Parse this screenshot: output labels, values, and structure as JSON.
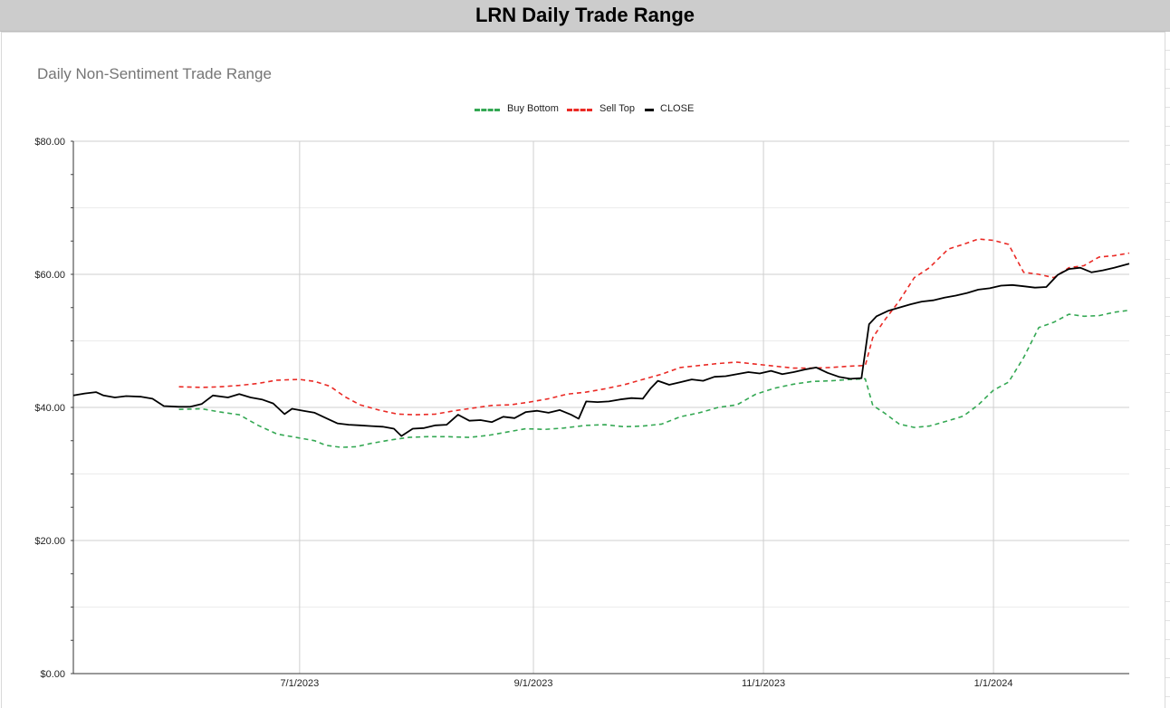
{
  "banner": {
    "title": "LRN Daily Trade Range"
  },
  "chart_data": {
    "type": "line",
    "title": "Daily Non-Sentiment Trade Range",
    "xlabel": "",
    "ylabel": "",
    "ylim": [
      0,
      80
    ],
    "y_ticks": [
      "$0.00",
      "$20.00",
      "$40.00",
      "$60.00",
      "$80.00"
    ],
    "y_tick_values": [
      0,
      20,
      40,
      60,
      80
    ],
    "x_ticks": [
      "7/1/2023",
      "9/1/2023",
      "11/1/2023",
      "1/1/2024"
    ],
    "x_tick_dates": [
      "2023-07-01",
      "2023-09-01",
      "2023-11-01",
      "2024-01-01"
    ],
    "x_range": [
      "2023-05-02",
      "2024-02-06"
    ],
    "grid": true,
    "legend_position": "top-center",
    "series": [
      {
        "name": "Buy Bottom",
        "color": "#34a853",
        "style": "dashed",
        "points": [
          [
            "2023-05-30",
            39.7
          ],
          [
            "2023-06-05",
            39.8
          ],
          [
            "2023-06-10",
            39.3
          ],
          [
            "2023-06-15",
            38.9
          ],
          [
            "2023-06-20",
            37.3
          ],
          [
            "2023-06-25",
            36.0
          ],
          [
            "2023-07-01",
            35.4
          ],
          [
            "2023-07-05",
            35.0
          ],
          [
            "2023-07-08",
            34.3
          ],
          [
            "2023-07-12",
            34.0
          ],
          [
            "2023-07-16",
            34.1
          ],
          [
            "2023-07-20",
            34.6
          ],
          [
            "2023-07-25",
            35.1
          ],
          [
            "2023-07-30",
            35.5
          ],
          [
            "2023-08-04",
            35.6
          ],
          [
            "2023-08-09",
            35.6
          ],
          [
            "2023-08-15",
            35.5
          ],
          [
            "2023-08-20",
            35.8
          ],
          [
            "2023-08-25",
            36.3
          ],
          [
            "2023-08-30",
            36.8
          ],
          [
            "2023-09-04",
            36.7
          ],
          [
            "2023-09-09",
            36.9
          ],
          [
            "2023-09-15",
            37.3
          ],
          [
            "2023-09-20",
            37.4
          ],
          [
            "2023-09-25",
            37.1
          ],
          [
            "2023-09-30",
            37.2
          ],
          [
            "2023-10-05",
            37.5
          ],
          [
            "2023-10-10",
            38.6
          ],
          [
            "2023-10-15",
            39.2
          ],
          [
            "2023-10-20",
            40.0
          ],
          [
            "2023-10-25",
            40.4
          ],
          [
            "2023-10-30",
            42.0
          ],
          [
            "2023-11-04",
            42.9
          ],
          [
            "2023-11-09",
            43.5
          ],
          [
            "2023-11-14",
            43.9
          ],
          [
            "2023-11-19",
            44.0
          ],
          [
            "2023-11-24",
            44.2
          ],
          [
            "2023-11-28",
            44.3
          ],
          [
            "2023-11-30",
            40.3
          ],
          [
            "2023-12-03",
            39.2
          ],
          [
            "2023-12-07",
            37.5
          ],
          [
            "2023-12-11",
            37.0
          ],
          [
            "2023-12-15",
            37.2
          ],
          [
            "2023-12-20",
            38.0
          ],
          [
            "2023-12-24",
            38.7
          ],
          [
            "2023-12-28",
            40.4
          ],
          [
            "2024-01-01",
            42.6
          ],
          [
            "2024-01-05",
            43.8
          ],
          [
            "2024-01-09",
            47.5
          ],
          [
            "2024-01-13",
            52.0
          ],
          [
            "2024-01-17",
            52.8
          ],
          [
            "2024-01-21",
            54.0
          ],
          [
            "2024-01-25",
            53.7
          ],
          [
            "2024-01-29",
            53.8
          ],
          [
            "2024-02-02",
            54.3
          ],
          [
            "2024-02-06",
            54.6
          ]
        ]
      },
      {
        "name": "Sell Top",
        "color": "#ea2a25",
        "style": "dashed",
        "points": [
          [
            "2023-05-30",
            43.1
          ],
          [
            "2023-06-05",
            43.0
          ],
          [
            "2023-06-10",
            43.1
          ],
          [
            "2023-06-15",
            43.3
          ],
          [
            "2023-06-20",
            43.6
          ],
          [
            "2023-06-25",
            44.1
          ],
          [
            "2023-07-01",
            44.2
          ],
          [
            "2023-07-05",
            43.9
          ],
          [
            "2023-07-09",
            43.2
          ],
          [
            "2023-07-13",
            41.6
          ],
          [
            "2023-07-17",
            40.4
          ],
          [
            "2023-07-22",
            39.6
          ],
          [
            "2023-07-27",
            39.0
          ],
          [
            "2023-08-01",
            38.9
          ],
          [
            "2023-08-06",
            39.0
          ],
          [
            "2023-08-11",
            39.5
          ],
          [
            "2023-08-16",
            39.9
          ],
          [
            "2023-08-21",
            40.3
          ],
          [
            "2023-08-26",
            40.4
          ],
          [
            "2023-08-31",
            40.8
          ],
          [
            "2023-09-05",
            41.3
          ],
          [
            "2023-09-10",
            42.0
          ],
          [
            "2023-09-15",
            42.3
          ],
          [
            "2023-09-20",
            42.8
          ],
          [
            "2023-09-25",
            43.4
          ],
          [
            "2023-09-30",
            44.2
          ],
          [
            "2023-10-05",
            45.0
          ],
          [
            "2023-10-10",
            46.0
          ],
          [
            "2023-10-15",
            46.3
          ],
          [
            "2023-10-20",
            46.6
          ],
          [
            "2023-10-25",
            46.8
          ],
          [
            "2023-10-30",
            46.5
          ],
          [
            "2023-11-04",
            46.2
          ],
          [
            "2023-11-09",
            45.9
          ],
          [
            "2023-11-14",
            45.9
          ],
          [
            "2023-11-19",
            46.0
          ],
          [
            "2023-11-24",
            46.2
          ],
          [
            "2023-11-28",
            46.3
          ],
          [
            "2023-11-30",
            50.5
          ],
          [
            "2023-12-03",
            53.0
          ],
          [
            "2023-12-07",
            56.0
          ],
          [
            "2023-12-11",
            59.5
          ],
          [
            "2023-12-15",
            61.0
          ],
          [
            "2023-12-20",
            63.8
          ],
          [
            "2023-12-24",
            64.5
          ],
          [
            "2023-12-28",
            65.3
          ],
          [
            "2024-01-01",
            65.1
          ],
          [
            "2024-01-05",
            64.5
          ],
          [
            "2024-01-09",
            60.3
          ],
          [
            "2024-01-13",
            60.0
          ],
          [
            "2024-01-17",
            59.5
          ],
          [
            "2024-01-21",
            61.0
          ],
          [
            "2024-01-25",
            61.3
          ],
          [
            "2024-01-29",
            62.6
          ],
          [
            "2024-02-02",
            62.8
          ],
          [
            "2024-02-06",
            63.2
          ]
        ]
      },
      {
        "name": "CLOSE",
        "color": "#000000",
        "style": "solid",
        "points": [
          [
            "2023-05-02",
            41.8
          ],
          [
            "2023-05-05",
            42.1
          ],
          [
            "2023-05-08",
            42.3
          ],
          [
            "2023-05-10",
            41.8
          ],
          [
            "2023-05-13",
            41.5
          ],
          [
            "2023-05-16",
            41.7
          ],
          [
            "2023-05-20",
            41.6
          ],
          [
            "2023-05-23",
            41.3
          ],
          [
            "2023-05-26",
            40.2
          ],
          [
            "2023-05-30",
            40.1
          ],
          [
            "2023-06-02",
            40.1
          ],
          [
            "2023-06-05",
            40.5
          ],
          [
            "2023-06-08",
            41.8
          ],
          [
            "2023-06-12",
            41.5
          ],
          [
            "2023-06-15",
            42.0
          ],
          [
            "2023-06-18",
            41.5
          ],
          [
            "2023-06-21",
            41.2
          ],
          [
            "2023-06-24",
            40.6
          ],
          [
            "2023-06-27",
            39.0
          ],
          [
            "2023-06-29",
            39.8
          ],
          [
            "2023-07-02",
            39.5
          ],
          [
            "2023-07-05",
            39.2
          ],
          [
            "2023-07-08",
            38.4
          ],
          [
            "2023-07-11",
            37.6
          ],
          [
            "2023-07-14",
            37.4
          ],
          [
            "2023-07-17",
            37.3
          ],
          [
            "2023-07-20",
            37.2
          ],
          [
            "2023-07-23",
            37.1
          ],
          [
            "2023-07-26",
            36.8
          ],
          [
            "2023-07-28",
            35.7
          ],
          [
            "2023-07-31",
            36.8
          ],
          [
            "2023-08-03",
            36.9
          ],
          [
            "2023-08-06",
            37.3
          ],
          [
            "2023-08-09",
            37.4
          ],
          [
            "2023-08-12",
            38.9
          ],
          [
            "2023-08-15",
            38.0
          ],
          [
            "2023-08-18",
            38.1
          ],
          [
            "2023-08-21",
            37.8
          ],
          [
            "2023-08-24",
            38.6
          ],
          [
            "2023-08-27",
            38.4
          ],
          [
            "2023-08-30",
            39.3
          ],
          [
            "2023-09-02",
            39.5
          ],
          [
            "2023-09-05",
            39.2
          ],
          [
            "2023-09-08",
            39.6
          ],
          [
            "2023-09-11",
            38.9
          ],
          [
            "2023-09-13",
            38.3
          ],
          [
            "2023-09-15",
            40.9
          ],
          [
            "2023-09-18",
            40.8
          ],
          [
            "2023-09-21",
            40.9
          ],
          [
            "2023-09-24",
            41.2
          ],
          [
            "2023-09-27",
            41.4
          ],
          [
            "2023-09-30",
            41.3
          ],
          [
            "2023-10-02",
            42.8
          ],
          [
            "2023-10-04",
            44.0
          ],
          [
            "2023-10-07",
            43.4
          ],
          [
            "2023-10-10",
            43.8
          ],
          [
            "2023-10-13",
            44.2
          ],
          [
            "2023-10-16",
            44.0
          ],
          [
            "2023-10-19",
            44.6
          ],
          [
            "2023-10-22",
            44.7
          ],
          [
            "2023-10-25",
            45.0
          ],
          [
            "2023-10-28",
            45.3
          ],
          [
            "2023-10-31",
            45.1
          ],
          [
            "2023-11-03",
            45.5
          ],
          [
            "2023-11-06",
            45.0
          ],
          [
            "2023-11-09",
            45.3
          ],
          [
            "2023-11-12",
            45.7
          ],
          [
            "2023-11-15",
            46.0
          ],
          [
            "2023-11-18",
            45.2
          ],
          [
            "2023-11-21",
            44.6
          ],
          [
            "2023-11-24",
            44.3
          ],
          [
            "2023-11-27",
            44.4
          ],
          [
            "2023-11-29",
            52.5
          ],
          [
            "2023-12-01",
            53.7
          ],
          [
            "2023-12-04",
            54.5
          ],
          [
            "2023-12-07",
            55.0
          ],
          [
            "2023-12-10",
            55.5
          ],
          [
            "2023-12-13",
            55.9
          ],
          [
            "2023-12-16",
            56.1
          ],
          [
            "2023-12-19",
            56.5
          ],
          [
            "2023-12-22",
            56.8
          ],
          [
            "2023-12-25",
            57.2
          ],
          [
            "2023-12-28",
            57.7
          ],
          [
            "2023-12-31",
            57.9
          ],
          [
            "2024-01-03",
            58.3
          ],
          [
            "2024-01-06",
            58.4
          ],
          [
            "2024-01-09",
            58.2
          ],
          [
            "2024-01-12",
            58.0
          ],
          [
            "2024-01-15",
            58.1
          ],
          [
            "2024-01-18",
            59.9
          ],
          [
            "2024-01-21",
            60.8
          ],
          [
            "2024-01-24",
            61.0
          ],
          [
            "2024-01-27",
            60.3
          ],
          [
            "2024-01-30",
            60.6
          ],
          [
            "2024-02-02",
            61.0
          ],
          [
            "2024-02-06",
            61.6
          ]
        ]
      }
    ]
  }
}
